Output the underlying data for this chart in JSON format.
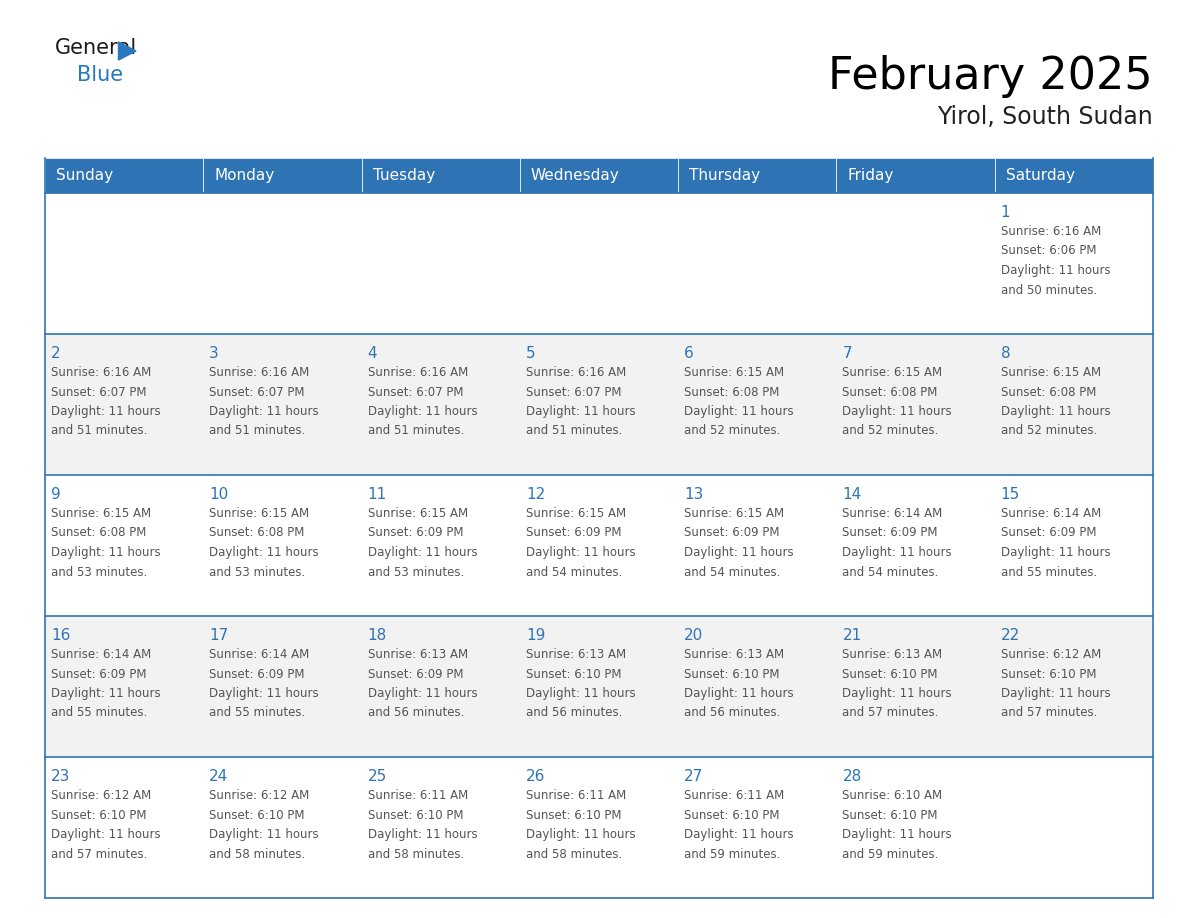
{
  "title": "February 2025",
  "subtitle": "Yirol, South Sudan",
  "header_color": "#2E74B5",
  "header_text_color": "#FFFFFF",
  "cell_bg_white": "#FFFFFF",
  "cell_bg_gray": "#F2F2F2",
  "border_color": "#2E74B5",
  "day_number_color": "#2E74B5",
  "info_text_color": "#555555",
  "days_of_week": [
    "Sunday",
    "Monday",
    "Tuesday",
    "Wednesday",
    "Thursday",
    "Friday",
    "Saturday"
  ],
  "weeks": [
    [
      {
        "day": "",
        "info": ""
      },
      {
        "day": "",
        "info": ""
      },
      {
        "day": "",
        "info": ""
      },
      {
        "day": "",
        "info": ""
      },
      {
        "day": "",
        "info": ""
      },
      {
        "day": "",
        "info": ""
      },
      {
        "day": "1",
        "info": "Sunrise: 6:16 AM\nSunset: 6:06 PM\nDaylight: 11 hours\nand 50 minutes."
      }
    ],
    [
      {
        "day": "2",
        "info": "Sunrise: 6:16 AM\nSunset: 6:07 PM\nDaylight: 11 hours\nand 51 minutes."
      },
      {
        "day": "3",
        "info": "Sunrise: 6:16 AM\nSunset: 6:07 PM\nDaylight: 11 hours\nand 51 minutes."
      },
      {
        "day": "4",
        "info": "Sunrise: 6:16 AM\nSunset: 6:07 PM\nDaylight: 11 hours\nand 51 minutes."
      },
      {
        "day": "5",
        "info": "Sunrise: 6:16 AM\nSunset: 6:07 PM\nDaylight: 11 hours\nand 51 minutes."
      },
      {
        "day": "6",
        "info": "Sunrise: 6:15 AM\nSunset: 6:08 PM\nDaylight: 11 hours\nand 52 minutes."
      },
      {
        "day": "7",
        "info": "Sunrise: 6:15 AM\nSunset: 6:08 PM\nDaylight: 11 hours\nand 52 minutes."
      },
      {
        "day": "8",
        "info": "Sunrise: 6:15 AM\nSunset: 6:08 PM\nDaylight: 11 hours\nand 52 minutes."
      }
    ],
    [
      {
        "day": "9",
        "info": "Sunrise: 6:15 AM\nSunset: 6:08 PM\nDaylight: 11 hours\nand 53 minutes."
      },
      {
        "day": "10",
        "info": "Sunrise: 6:15 AM\nSunset: 6:08 PM\nDaylight: 11 hours\nand 53 minutes."
      },
      {
        "day": "11",
        "info": "Sunrise: 6:15 AM\nSunset: 6:09 PM\nDaylight: 11 hours\nand 53 minutes."
      },
      {
        "day": "12",
        "info": "Sunrise: 6:15 AM\nSunset: 6:09 PM\nDaylight: 11 hours\nand 54 minutes."
      },
      {
        "day": "13",
        "info": "Sunrise: 6:15 AM\nSunset: 6:09 PM\nDaylight: 11 hours\nand 54 minutes."
      },
      {
        "day": "14",
        "info": "Sunrise: 6:14 AM\nSunset: 6:09 PM\nDaylight: 11 hours\nand 54 minutes."
      },
      {
        "day": "15",
        "info": "Sunrise: 6:14 AM\nSunset: 6:09 PM\nDaylight: 11 hours\nand 55 minutes."
      }
    ],
    [
      {
        "day": "16",
        "info": "Sunrise: 6:14 AM\nSunset: 6:09 PM\nDaylight: 11 hours\nand 55 minutes."
      },
      {
        "day": "17",
        "info": "Sunrise: 6:14 AM\nSunset: 6:09 PM\nDaylight: 11 hours\nand 55 minutes."
      },
      {
        "day": "18",
        "info": "Sunrise: 6:13 AM\nSunset: 6:09 PM\nDaylight: 11 hours\nand 56 minutes."
      },
      {
        "day": "19",
        "info": "Sunrise: 6:13 AM\nSunset: 6:10 PM\nDaylight: 11 hours\nand 56 minutes."
      },
      {
        "day": "20",
        "info": "Sunrise: 6:13 AM\nSunset: 6:10 PM\nDaylight: 11 hours\nand 56 minutes."
      },
      {
        "day": "21",
        "info": "Sunrise: 6:13 AM\nSunset: 6:10 PM\nDaylight: 11 hours\nand 57 minutes."
      },
      {
        "day": "22",
        "info": "Sunrise: 6:12 AM\nSunset: 6:10 PM\nDaylight: 11 hours\nand 57 minutes."
      }
    ],
    [
      {
        "day": "23",
        "info": "Sunrise: 6:12 AM\nSunset: 6:10 PM\nDaylight: 11 hours\nand 57 minutes."
      },
      {
        "day": "24",
        "info": "Sunrise: 6:12 AM\nSunset: 6:10 PM\nDaylight: 11 hours\nand 58 minutes."
      },
      {
        "day": "25",
        "info": "Sunrise: 6:11 AM\nSunset: 6:10 PM\nDaylight: 11 hours\nand 58 minutes."
      },
      {
        "day": "26",
        "info": "Sunrise: 6:11 AM\nSunset: 6:10 PM\nDaylight: 11 hours\nand 58 minutes."
      },
      {
        "day": "27",
        "info": "Sunrise: 6:11 AM\nSunset: 6:10 PM\nDaylight: 11 hours\nand 59 minutes."
      },
      {
        "day": "28",
        "info": "Sunrise: 6:10 AM\nSunset: 6:10 PM\nDaylight: 11 hours\nand 59 minutes."
      },
      {
        "day": "",
        "info": ""
      }
    ]
  ],
  "logo_general_color": "#1a1a1a",
  "logo_blue_color": "#2977BC",
  "logo_triangle_color": "#2977BC",
  "week_bg_colors": [
    "#FFFFFF",
    "#F2F2F2",
    "#FFFFFF",
    "#F2F2F2",
    "#FFFFFF"
  ]
}
